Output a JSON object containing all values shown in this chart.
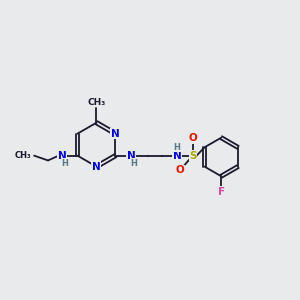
{
  "background_color": "#e8eaec",
  "fig_size": [
    3.0,
    3.0
  ],
  "dpi": 100,
  "bond_color": "#1a1a2e",
  "bond_lw": 1.3,
  "N_color": "#0000ee",
  "O_color": "#ee1100",
  "S_color": "#aaaa00",
  "F_color": "#dd44aa",
  "C_color": "#1a1a2e",
  "H_color": "#557788",
  "font_size_atom": 7.5,
  "font_size_H": 6.0,
  "font_size_methyl": 6.5,
  "xlim": [
    0,
    11
  ],
  "ylim": [
    1,
    9
  ]
}
